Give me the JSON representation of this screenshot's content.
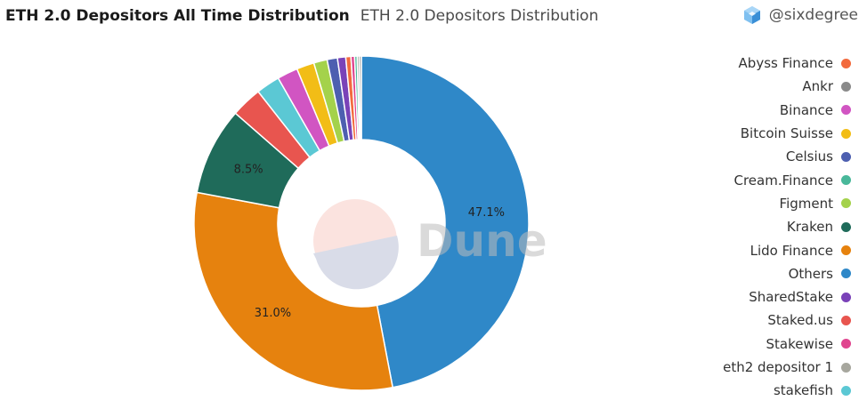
{
  "header": {
    "title": "ETH 2.0 Depositors All Time Distribution",
    "subtitle": "ETH 2.0 Depositors Distribution"
  },
  "brand": {
    "handle": "@sixdegree",
    "icon": "cube-icon",
    "color": "#4ea3e8"
  },
  "watermark": {
    "text": "Dune"
  },
  "chart_data": {
    "type": "pie",
    "donut": true,
    "legend_position": "right",
    "title": "ETH 2.0 Depositors Distribution",
    "slices": [
      {
        "name": "Others",
        "value": 47.1,
        "color": "#2f88c8",
        "label": "47.1%"
      },
      {
        "name": "Lido Finance",
        "value": 31.0,
        "color": "#e6820e",
        "label": "31.0%"
      },
      {
        "name": "Kraken",
        "value": 8.5,
        "color": "#1f6b5a",
        "label": "8.5%"
      },
      {
        "name": "Staked.us",
        "value": 3.0,
        "color": "#e8554f"
      },
      {
        "name": "stakefish",
        "value": 2.3,
        "color": "#5bc8d4"
      },
      {
        "name": "Binance",
        "value": 2.0,
        "color": "#d155c2"
      },
      {
        "name": "Bitcoin Suisse",
        "value": 1.7,
        "color": "#f2bd16"
      },
      {
        "name": "Figment",
        "value": 1.3,
        "color": "#a4d24b"
      },
      {
        "name": "Celsius",
        "value": 1.0,
        "color": "#4d5fb0"
      },
      {
        "name": "SharedStake",
        "value": 0.8,
        "color": "#7a42b8"
      },
      {
        "name": "Abyss Finance",
        "value": 0.5,
        "color": "#f26a3d"
      },
      {
        "name": "Stakewise",
        "value": 0.35,
        "color": "#e0458f"
      },
      {
        "name": "Cream.Finance",
        "value": 0.25,
        "color": "#49b89a"
      },
      {
        "name": "eth2 depositor 1",
        "value": 0.2,
        "color": "#a7a79e"
      },
      {
        "name": "Ankr",
        "value": 0.2,
        "color": "#8a8a8a"
      }
    ]
  },
  "legend": {
    "items": [
      {
        "name": "Abyss Finance",
        "color": "#f26a3d"
      },
      {
        "name": "Ankr",
        "color": "#8a8a8a"
      },
      {
        "name": "Binance",
        "color": "#d155c2"
      },
      {
        "name": "Bitcoin Suisse",
        "color": "#f2bd16"
      },
      {
        "name": "Celsius",
        "color": "#4d5fb0"
      },
      {
        "name": "Cream.Finance",
        "color": "#49b89a"
      },
      {
        "name": "Figment",
        "color": "#a4d24b"
      },
      {
        "name": "Kraken",
        "color": "#1f6b5a"
      },
      {
        "name": "Lido Finance",
        "color": "#e6820e"
      },
      {
        "name": "Others",
        "color": "#2f88c8"
      },
      {
        "name": "SharedStake",
        "color": "#7a42b8"
      },
      {
        "name": "Staked.us",
        "color": "#e8554f"
      },
      {
        "name": "Stakewise",
        "color": "#e0458f"
      },
      {
        "name": "eth2 depositor 1",
        "color": "#a7a79e"
      },
      {
        "name": "stakefish",
        "color": "#5bc8d4"
      }
    ]
  }
}
